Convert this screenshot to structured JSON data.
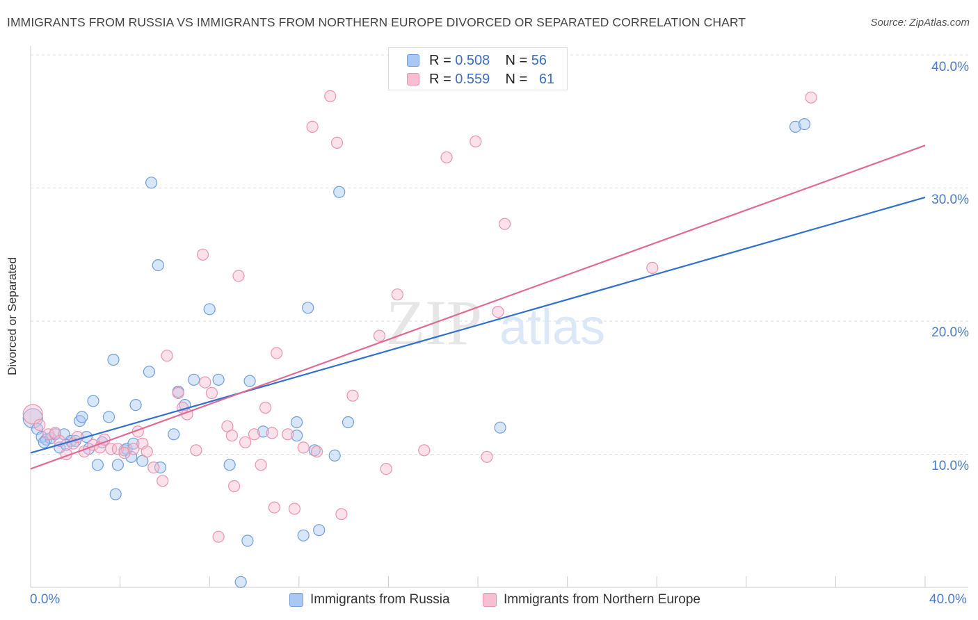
{
  "header": {
    "title": "IMMIGRANTS FROM RUSSIA VS IMMIGRANTS FROM NORTHERN EUROPE DIVORCED OR SEPARATED CORRELATION CHART",
    "source": "Source: ZipAtlas.com"
  },
  "watermark": {
    "zip": "ZIP",
    "atlas": "atlas"
  },
  "stats": {
    "russia": {
      "r_label": "R =",
      "r_value": "0.508",
      "n_label": "N =",
      "n_value": "56"
    },
    "northern_europe": {
      "r_label": "R =",
      "r_value": "0.559",
      "n_label": "N =",
      "n_value": "61"
    }
  },
  "colors": {
    "russia_fill": "#a9c8f2",
    "russia_stroke": "#6f9ee0",
    "russia_line": "#3070d0",
    "ne_fill": "#f7bfd0",
    "ne_stroke": "#ec92ae",
    "ne_line": "#e06a95",
    "tick_text": "#4a7cc9",
    "grid": "#dddddd"
  },
  "chart_data": {
    "type": "scatter",
    "title": "IMMIGRANTS FROM RUSSIA VS IMMIGRANTS FROM NORTHERN EUROPE DIVORCED OR SEPARATED CORRELATION CHART",
    "xlabel": "",
    "ylabel": "Divorced or Separated",
    "xlim": [
      0,
      40
    ],
    "ylim": [
      0,
      40
    ],
    "x_tick_labels": [
      "0.0%",
      "40.0%"
    ],
    "y_tick_labels": [
      "10.0%",
      "20.0%",
      "30.0%",
      "40.0%"
    ],
    "y_ticks": [
      10,
      20,
      30,
      40
    ],
    "grid": true,
    "legend_position": "bottom-center",
    "series": [
      {
        "name": "Immigrants from Russia",
        "r": 0.508,
        "n": 56,
        "trend": {
          "x": [
            0,
            40
          ],
          "y": [
            10.1,
            29.3
          ]
        },
        "points": [
          [
            0.1,
            12.7
          ],
          [
            0.3,
            11.9
          ],
          [
            0.5,
            11.3
          ],
          [
            0.7,
            11.1
          ],
          [
            0.9,
            11.2
          ],
          [
            1.1,
            11.5
          ],
          [
            1.3,
            10.5
          ],
          [
            1.5,
            11.5
          ],
          [
            1.8,
            11.0
          ],
          [
            2.0,
            11.0
          ],
          [
            2.2,
            12.5
          ],
          [
            2.3,
            12.8
          ],
          [
            2.5,
            11.3
          ],
          [
            2.8,
            14.0
          ],
          [
            3.0,
            9.2
          ],
          [
            3.5,
            12.8
          ],
          [
            3.7,
            17.1
          ],
          [
            3.8,
            7.0
          ],
          [
            3.9,
            9.2
          ],
          [
            4.2,
            10.3
          ],
          [
            4.3,
            10.4
          ],
          [
            4.5,
            9.8
          ],
          [
            4.6,
            10.8
          ],
          [
            4.7,
            13.7
          ],
          [
            5.0,
            9.5
          ],
          [
            5.3,
            16.2
          ],
          [
            5.4,
            30.4
          ],
          [
            5.7,
            24.2
          ],
          [
            5.8,
            9.0
          ],
          [
            6.4,
            11.5
          ],
          [
            6.6,
            14.7
          ],
          [
            6.9,
            13.7
          ],
          [
            7.3,
            15.6
          ],
          [
            8.0,
            20.9
          ],
          [
            8.4,
            15.6
          ],
          [
            8.9,
            9.2
          ],
          [
            9.4,
            0.4
          ],
          [
            9.7,
            3.5
          ],
          [
            9.8,
            15.5
          ],
          [
            10.4,
            11.7
          ],
          [
            11.9,
            11.4
          ],
          [
            11.9,
            12.4
          ],
          [
            12.2,
            3.9
          ],
          [
            12.4,
            21.0
          ],
          [
            12.7,
            10.3
          ],
          [
            12.9,
            4.3
          ],
          [
            13.6,
            9.9
          ],
          [
            13.8,
            29.7
          ],
          [
            14.2,
            12.4
          ],
          [
            21.0,
            12.0
          ],
          [
            34.2,
            34.6
          ],
          [
            34.6,
            34.8
          ],
          [
            0.6,
            10.9
          ],
          [
            1.6,
            10.7
          ],
          [
            3.2,
            10.9
          ],
          [
            2.6,
            10.4
          ]
        ]
      },
      {
        "name": "Immigrants from Northern Europe",
        "r": 0.559,
        "n": 61,
        "trend": {
          "x": [
            0,
            40
          ],
          "y": [
            8.9,
            33.2
          ]
        },
        "points": [
          [
            0.1,
            13.0
          ],
          [
            0.4,
            12.2
          ],
          [
            0.8,
            11.5
          ],
          [
            1.1,
            11.6
          ],
          [
            1.3,
            11.0
          ],
          [
            1.6,
            10.0
          ],
          [
            1.9,
            10.8
          ],
          [
            2.1,
            11.3
          ],
          [
            2.4,
            10.2
          ],
          [
            2.8,
            10.7
          ],
          [
            3.1,
            10.5
          ],
          [
            3.3,
            11.1
          ],
          [
            3.6,
            10.4
          ],
          [
            3.9,
            10.4
          ],
          [
            4.2,
            10.1
          ],
          [
            4.6,
            10.4
          ],
          [
            4.8,
            11.7
          ],
          [
            5.0,
            10.8
          ],
          [
            5.2,
            10.2
          ],
          [
            5.5,
            9.0
          ],
          [
            5.9,
            8.0
          ],
          [
            6.1,
            17.4
          ],
          [
            6.6,
            14.6
          ],
          [
            6.8,
            13.5
          ],
          [
            7.0,
            13.0
          ],
          [
            7.4,
            10.3
          ],
          [
            7.7,
            25.0
          ],
          [
            7.8,
            15.4
          ],
          [
            8.1,
            14.6
          ],
          [
            8.4,
            3.8
          ],
          [
            8.8,
            12.1
          ],
          [
            9.0,
            11.4
          ],
          [
            9.1,
            7.6
          ],
          [
            9.3,
            23.4
          ],
          [
            9.6,
            10.9
          ],
          [
            10.0,
            11.5
          ],
          [
            10.3,
            9.2
          ],
          [
            10.5,
            13.5
          ],
          [
            10.8,
            11.6
          ],
          [
            11.0,
            17.6
          ],
          [
            10.9,
            6.0
          ],
          [
            11.5,
            11.5
          ],
          [
            11.8,
            5.9
          ],
          [
            12.2,
            10.5
          ],
          [
            12.8,
            10.2
          ],
          [
            12.6,
            34.6
          ],
          [
            13.4,
            36.9
          ],
          [
            13.7,
            33.4
          ],
          [
            13.9,
            5.5
          ],
          [
            14.4,
            14.4
          ],
          [
            15.6,
            18.9
          ],
          [
            15.9,
            8.9
          ],
          [
            16.4,
            22.0
          ],
          [
            17.6,
            10.3
          ],
          [
            18.6,
            32.3
          ],
          [
            19.9,
            33.5
          ],
          [
            20.4,
            9.8
          ],
          [
            20.9,
            20.7
          ],
          [
            21.2,
            27.3
          ],
          [
            27.8,
            24.0
          ],
          [
            34.9,
            36.8
          ]
        ]
      }
    ]
  },
  "legend": {
    "russia_label": "Immigrants from Russia",
    "ne_label": "Immigrants from Northern Europe"
  }
}
